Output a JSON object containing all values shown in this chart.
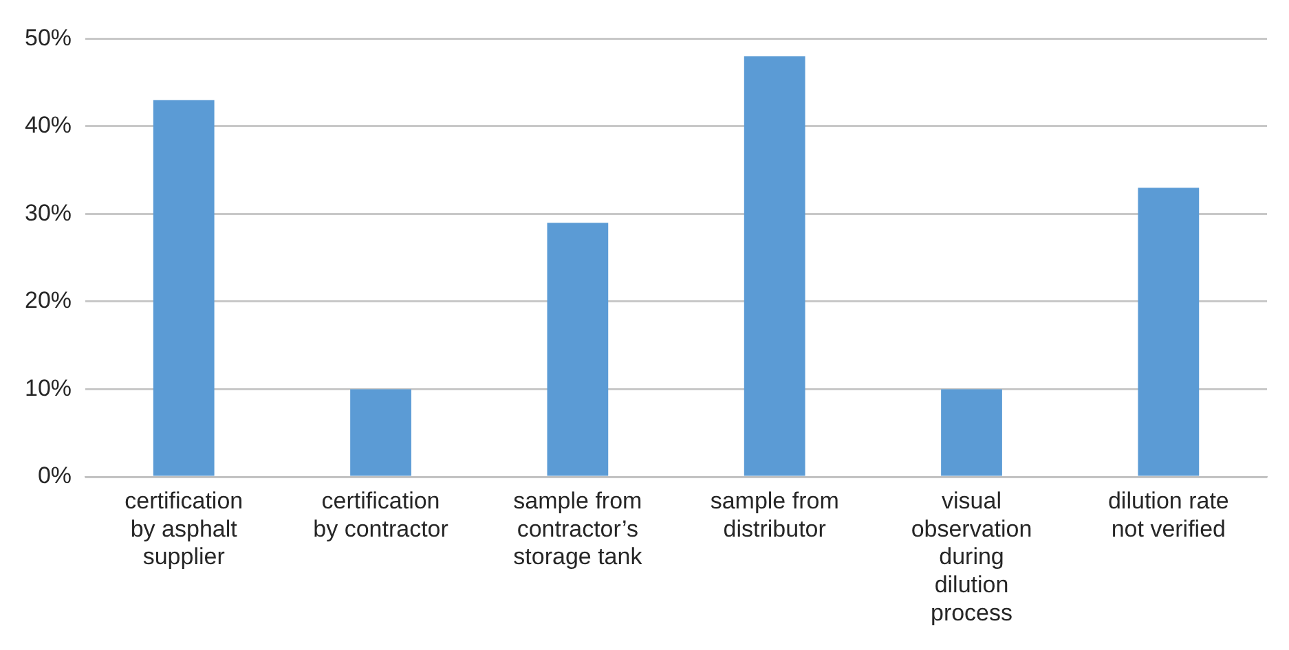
{
  "chart_data": {
    "type": "bar",
    "categories": [
      "certification by asphalt supplier",
      "certification by contractor",
      "sample from contractor’s storage tank",
      "sample from distributor",
      "visual observation during dilution process",
      "dilution rate not verified"
    ],
    "values": [
      43,
      10,
      29,
      48,
      10,
      33
    ],
    "color": "#5b9bd5",
    "ylim": [
      0,
      50
    ],
    "yticks": [
      {
        "value": 0,
        "label": "0%"
      },
      {
        "value": 10,
        "label": "10%"
      },
      {
        "value": 20,
        "label": "20%"
      },
      {
        "value": 30,
        "label": "30%"
      },
      {
        "value": 40,
        "label": "40%"
      },
      {
        "value": 50,
        "label": "50%"
      }
    ],
    "grid": "y",
    "legend": false
  }
}
